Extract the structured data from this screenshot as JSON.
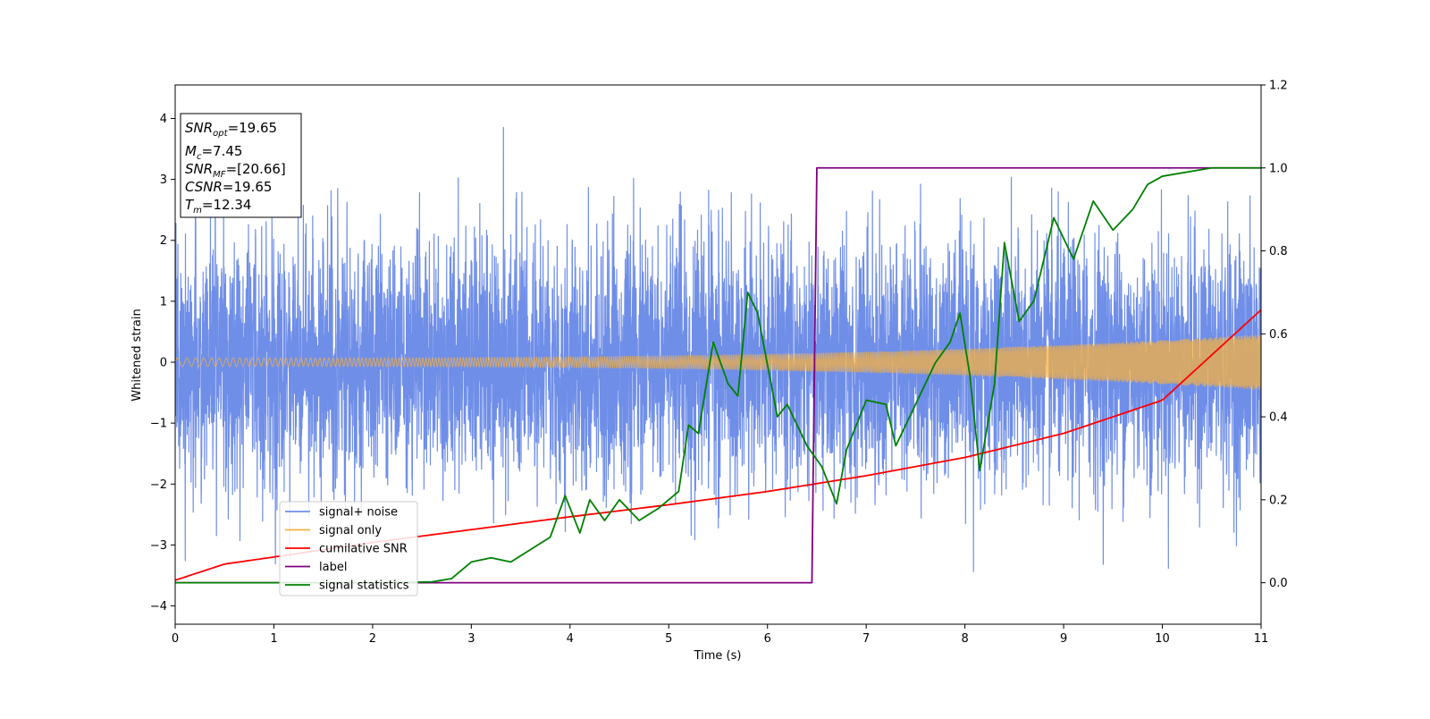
{
  "chart_data": {
    "type": "line",
    "xlabel": "Time (s)",
    "ylabel": "Whitened strain",
    "xlim": [
      0,
      11
    ],
    "ylim_left": [
      -4.3,
      4.55
    ],
    "ylim_right": [
      -0.1,
      1.2
    ],
    "grid": false,
    "legend_position": "lower-left",
    "x_ticks": [
      "0",
      "1",
      "2",
      "3",
      "4",
      "5",
      "6",
      "7",
      "8",
      "9",
      "10",
      "11"
    ],
    "y_ticks_left": [
      "4",
      "3",
      "2",
      "1",
      "0",
      "−1",
      "−2",
      "−3",
      "−4"
    ],
    "y_ticks_right": [
      "1.2",
      "1.0",
      "0.8",
      "0.6",
      "0.4",
      "0.2",
      "0.0"
    ],
    "info_box": [
      {
        "base": "SNR",
        "sub": "opt",
        "value": "=19.65"
      },
      {
        "base": "M",
        "sub": "c",
        "value": "=7.45"
      },
      {
        "base": "SNR",
        "sub": "MF",
        "value": "=[20.66]"
      },
      {
        "base": "CSNR",
        "sub": "",
        "value": "=19.65"
      },
      {
        "base": "T",
        "sub": "m",
        "value": "=12.34"
      }
    ],
    "series": [
      {
        "name": "signal+ noise",
        "color": "#6f8ee8",
        "axis": "left",
        "description_type": "noisy_timeseries",
        "approx_std": 1.0,
        "approx_range": [
          -3.6,
          4.2
        ]
      },
      {
        "name": "signal only",
        "color": "#f5b041",
        "axis": "left",
        "description_type": "chirp",
        "amplitude_start": 0.07,
        "amplitude_end": 0.45
      },
      {
        "name": "cumilative SNR",
        "color": "#ff0000",
        "axis": "right",
        "x": [
          0,
          0.5,
          1,
          2,
          3,
          4,
          5,
          6,
          7,
          8,
          9,
          10,
          11
        ],
        "y": [
          0.006,
          0.045,
          0.062,
          0.097,
          0.128,
          0.159,
          0.188,
          0.22,
          0.258,
          0.302,
          0.36,
          0.44,
          0.658
        ]
      },
      {
        "name": "label",
        "color": "#800080",
        "axis": "right",
        "x": [
          0,
          6.45,
          6.5,
          11
        ],
        "y": [
          0.0,
          0.0,
          1.0,
          1.0
        ]
      },
      {
        "name": "signal statistics",
        "color": "#008000",
        "axis": "right",
        "x": [
          0,
          2.0,
          2.6,
          2.8,
          3.0,
          3.2,
          3.4,
          3.6,
          3.8,
          3.95,
          4.1,
          4.2,
          4.35,
          4.5,
          4.7,
          4.9,
          5.1,
          5.2,
          5.3,
          5.45,
          5.6,
          5.7,
          5.8,
          5.9,
          6.1,
          6.2,
          6.4,
          6.55,
          6.7,
          6.8,
          7.0,
          7.2,
          7.3,
          7.5,
          7.7,
          7.85,
          7.95,
          8.05,
          8.15,
          8.3,
          8.4,
          8.55,
          8.7,
          8.9,
          9.1,
          9.3,
          9.5,
          9.7,
          9.85,
          10.0,
          10.5,
          11
        ],
        "y": [
          0.0,
          0.0,
          0.002,
          0.01,
          0.05,
          0.06,
          0.05,
          0.08,
          0.11,
          0.21,
          0.12,
          0.2,
          0.15,
          0.2,
          0.15,
          0.18,
          0.22,
          0.38,
          0.36,
          0.58,
          0.48,
          0.45,
          0.7,
          0.65,
          0.4,
          0.43,
          0.33,
          0.28,
          0.19,
          0.32,
          0.44,
          0.43,
          0.33,
          0.43,
          0.53,
          0.58,
          0.65,
          0.5,
          0.27,
          0.48,
          0.82,
          0.63,
          0.68,
          0.88,
          0.78,
          0.92,
          0.85,
          0.9,
          0.96,
          0.98,
          1.0,
          1.0
        ]
      }
    ]
  }
}
